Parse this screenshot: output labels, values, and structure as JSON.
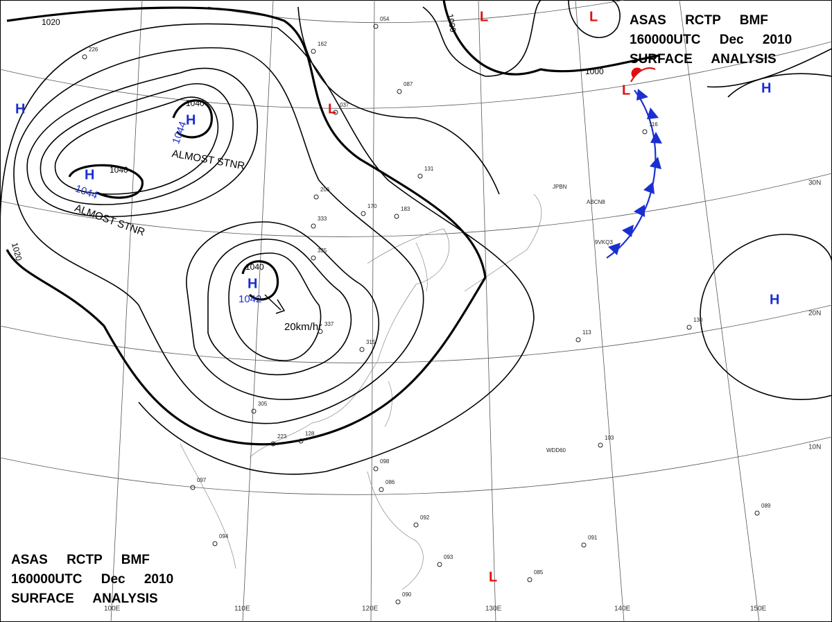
{
  "header_top": {
    "line1": "ASAS RCTP BMF",
    "line2": "160000UTC Dec 2010",
    "line3": "SURFACE ANALYSIS"
  },
  "header_bottom": {
    "line1": "ASAS RCTP BMF",
    "line2": "160000UTC Dec 2010",
    "line3": "SURFACE ANALYSIS"
  },
  "isobar_labels": [
    "1020",
    "1020",
    "1040",
    "1040",
    "1040",
    "1000",
    "1000"
  ],
  "pressure_systems": [
    {
      "symbol": "H",
      "pressure": "1044"
    },
    {
      "symbol": "H",
      "pressure": "1044"
    },
    {
      "symbol": "H",
      "pressure": "1042"
    },
    {
      "symbol": "H"
    },
    {
      "symbol": "H"
    },
    {
      "symbol": "H"
    },
    {
      "symbol": "L"
    },
    {
      "symbol": "L"
    },
    {
      "symbol": "L"
    },
    {
      "symbol": "L"
    },
    {
      "symbol": "L"
    }
  ],
  "annotations": [
    "ALMOST STNR",
    "ALMOST STNR",
    "20km/hr"
  ],
  "longitudes": [
    "100E",
    "110E",
    "120E",
    "130E",
    "140E",
    "150E"
  ],
  "latitudes": [
    "30N",
    "20N",
    "10N"
  ],
  "ship_ids": [
    "JPBN",
    "ABCN8",
    "9VKQ3",
    "WDD60"
  ],
  "station_reports": [
    "226",
    "162",
    "054",
    "087",
    "037",
    "131",
    "206",
    "183",
    "170",
    "333",
    "335",
    "337",
    "315",
    "305",
    "223",
    "128",
    "097",
    "094",
    "091",
    "098",
    "086",
    "092",
    "093",
    "090",
    "089",
    "085",
    "103",
    "113",
    "130",
    "116"
  ]
}
